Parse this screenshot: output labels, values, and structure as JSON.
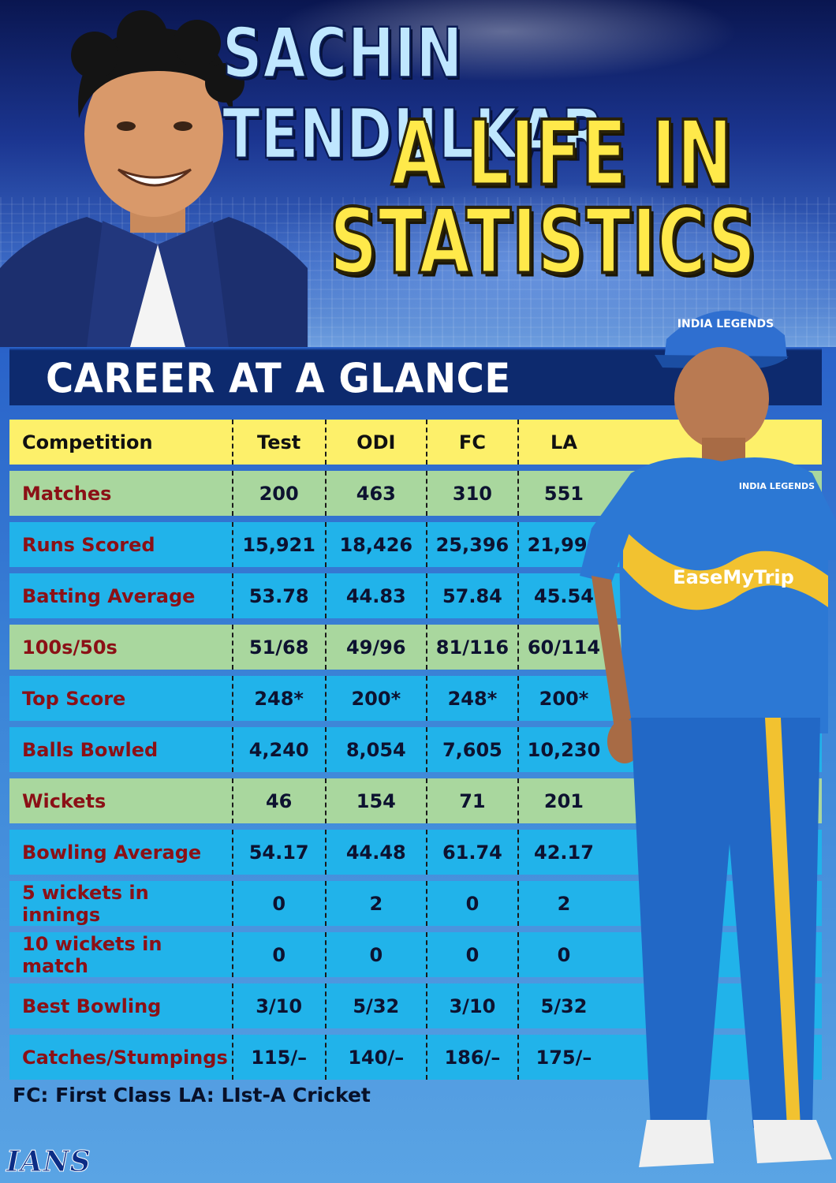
{
  "title": {
    "line1": "SACHIN TENDULKAR",
    "line2": "A LIFE IN",
    "line3": "STATISTICS"
  },
  "section_title": "CAREER AT A GLANCE",
  "jersey": {
    "cap_text": "INDIA LEGENDS",
    "sponsor": "EaseMyTrip",
    "badge": "INDIA LEGENDS"
  },
  "colors": {
    "header_row": "#fdf06a",
    "green_row": "#a9d79e",
    "blue_row": "#21b3ea",
    "label_text": "#8b1016",
    "section_bar": "#0d2a6e",
    "title_yellow": "#ffe94a"
  },
  "table": {
    "header": {
      "label": "Competition",
      "cols": [
        "Test",
        "ODI",
        "FC",
        "LA"
      ]
    },
    "rows": [
      {
        "label": "Matches",
        "style": "green",
        "values": [
          "200",
          "463",
          "310",
          "551"
        ]
      },
      {
        "label": "Runs Scored",
        "style": "blue",
        "values": [
          "15,921",
          "18,426",
          "25,396",
          "21,999"
        ]
      },
      {
        "label": "Batting Average",
        "style": "blue",
        "values": [
          "53.78",
          "44.83",
          "57.84",
          "45.54"
        ]
      },
      {
        "label": "100s/50s",
        "style": "green",
        "values": [
          "51/68",
          "49/96",
          "81/116",
          "60/114"
        ]
      },
      {
        "label": "Top Score",
        "style": "blue",
        "values": [
          "248*",
          "200*",
          "248*",
          "200*"
        ]
      },
      {
        "label": "Balls Bowled",
        "style": "blue",
        "values": [
          "4,240",
          "8,054",
          "7,605",
          "10,230"
        ]
      },
      {
        "label": "Wickets",
        "style": "green",
        "values": [
          "46",
          "154",
          "71",
          "201"
        ]
      },
      {
        "label": "Bowling Average",
        "style": "blue",
        "values": [
          "54.17",
          "44.48",
          "61.74",
          "42.17"
        ]
      },
      {
        "label": "5 wickets in innings",
        "style": "blue",
        "values": [
          "0",
          "2",
          "0",
          "2"
        ]
      },
      {
        "label": "10 wickets in match",
        "style": "blue",
        "values": [
          "0",
          "0",
          "0",
          "0"
        ]
      },
      {
        "label": "Best Bowling",
        "style": "blue",
        "values": [
          "3/10",
          "5/32",
          "3/10",
          "5/32"
        ]
      },
      {
        "label": "Catches/Stumpings",
        "style": "blue",
        "values": [
          "115/–",
          "140/–",
          "186/–",
          "175/–"
        ]
      }
    ]
  },
  "notes": {
    "fc": "FC: First Class",
    "la": "LA: LIst-A Cricket"
  },
  "logo": "IANS"
}
